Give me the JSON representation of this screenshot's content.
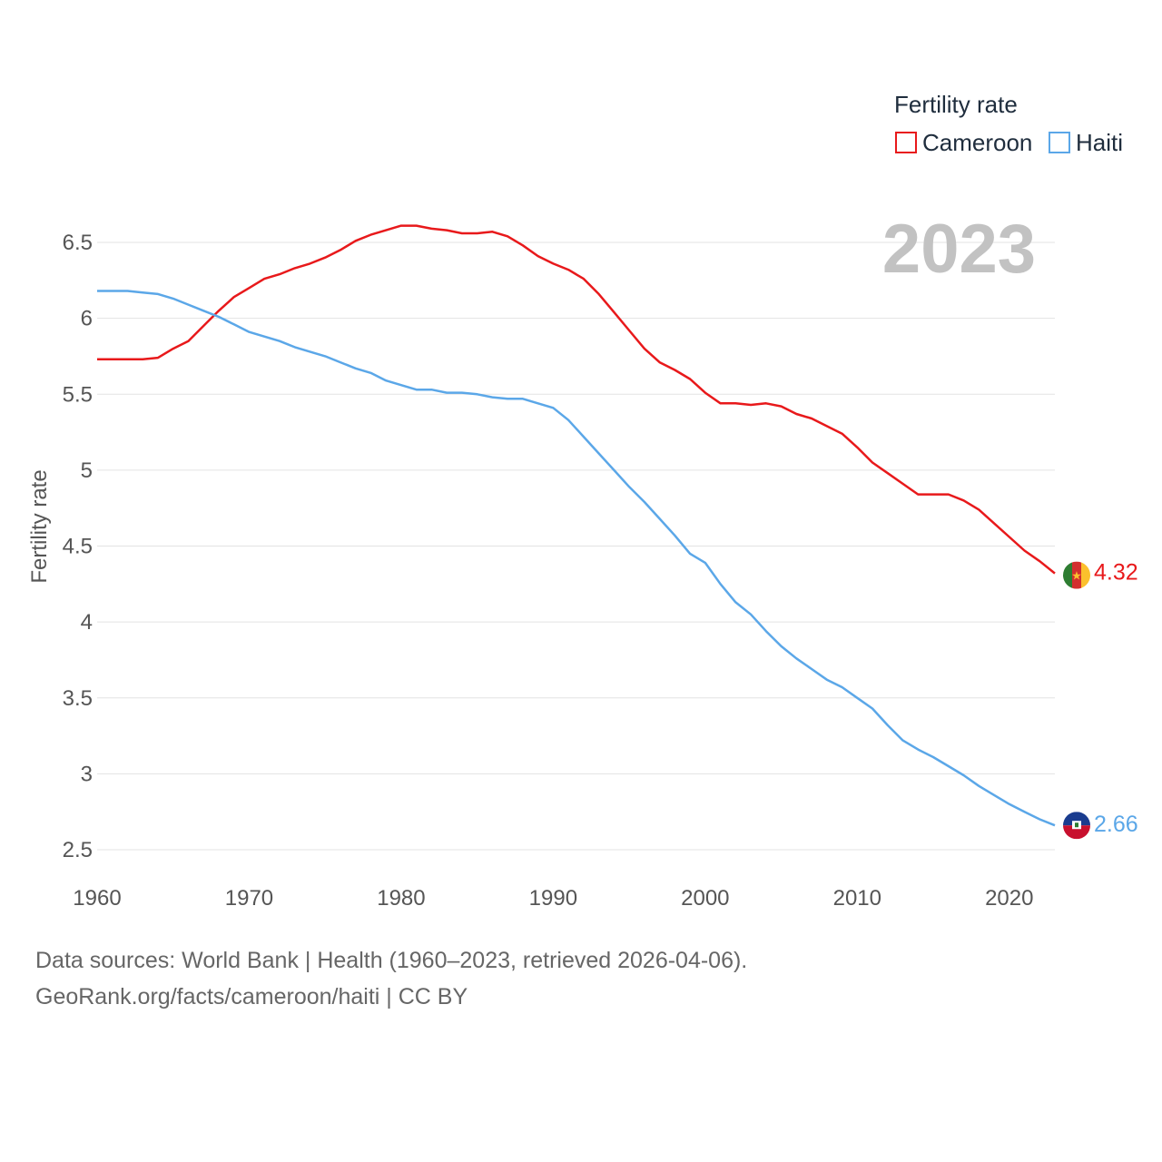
{
  "legend": {
    "title": "Fertility rate",
    "items": [
      "Cameroon",
      "Haiti"
    ]
  },
  "year_display": "2023",
  "footer": {
    "line1": "Data sources: World Bank | Health (1960–2023, retrieved 2026-04-06).",
    "line2": "GeoRank.org/facts/cameroon/haiti | CC BY"
  },
  "flags": {
    "cameroon": {
      "icon": "cameroon-flag-icon",
      "colors": [
        "#2e7d32",
        "#d32f2f",
        "#fbc02d"
      ]
    },
    "haiti": {
      "icon": "haiti-flag-icon",
      "colors": [
        "#1a3c8f",
        "#c8102e"
      ]
    }
  },
  "chart_data": {
    "type": "line",
    "title": "",
    "xlabel": "",
    "ylabel": "Fertility rate",
    "xlim": [
      1960,
      2023
    ],
    "ylim": [
      2.5,
      6.7
    ],
    "x_ticks": [
      1960,
      1970,
      1980,
      1990,
      2000,
      2010,
      2020
    ],
    "y_ticks": [
      2.5,
      3,
      3.5,
      4,
      4.5,
      5,
      5.5,
      6,
      6.5
    ],
    "y_tick_labels": [
      "2.5",
      "3",
      "3.5",
      "4",
      "4.5",
      "5",
      "5.5",
      "6",
      "6.5"
    ],
    "grid": true,
    "legend_position": "top-right",
    "x": [
      1960,
      1961,
      1962,
      1963,
      1964,
      1965,
      1966,
      1967,
      1968,
      1969,
      1970,
      1971,
      1972,
      1973,
      1974,
      1975,
      1976,
      1977,
      1978,
      1979,
      1980,
      1981,
      1982,
      1983,
      1984,
      1985,
      1986,
      1987,
      1988,
      1989,
      1990,
      1991,
      1992,
      1993,
      1994,
      1995,
      1996,
      1997,
      1998,
      1999,
      2000,
      2001,
      2002,
      2003,
      2004,
      2005,
      2006,
      2007,
      2008,
      2009,
      2010,
      2011,
      2012,
      2013,
      2014,
      2015,
      2016,
      2017,
      2018,
      2019,
      2020,
      2021,
      2022,
      2023
    ],
    "series": [
      {
        "name": "Cameroon",
        "color": "#e8191b",
        "end_label": "4.32",
        "values": [
          5.73,
          5.73,
          5.73,
          5.73,
          5.74,
          5.8,
          5.85,
          5.95,
          6.05,
          6.14,
          6.2,
          6.26,
          6.29,
          6.33,
          6.36,
          6.4,
          6.45,
          6.51,
          6.55,
          6.58,
          6.61,
          6.61,
          6.59,
          6.58,
          6.56,
          6.56,
          6.57,
          6.54,
          6.48,
          6.41,
          6.36,
          6.32,
          6.26,
          6.16,
          6.04,
          5.92,
          5.8,
          5.71,
          5.66,
          5.6,
          5.51,
          5.44,
          5.44,
          5.43,
          5.44,
          5.42,
          5.37,
          5.34,
          5.29,
          5.24,
          5.15,
          5.05,
          4.98,
          4.91,
          4.84,
          4.84,
          4.84,
          4.8,
          4.74,
          4.65,
          4.56,
          4.47,
          4.4,
          4.32
        ]
      },
      {
        "name": "Haiti",
        "color": "#5ba7e8",
        "end_label": "2.66",
        "values": [
          6.18,
          6.18,
          6.18,
          6.17,
          6.16,
          6.13,
          6.09,
          6.05,
          6.01,
          5.96,
          5.91,
          5.88,
          5.85,
          5.81,
          5.78,
          5.75,
          5.71,
          5.67,
          5.64,
          5.59,
          5.56,
          5.53,
          5.53,
          5.51,
          5.51,
          5.5,
          5.48,
          5.47,
          5.47,
          5.44,
          5.41,
          5.33,
          5.22,
          5.11,
          5.0,
          4.89,
          4.79,
          4.68,
          4.57,
          4.45,
          4.39,
          4.25,
          4.13,
          4.05,
          3.94,
          3.84,
          3.76,
          3.69,
          3.62,
          3.57,
          3.5,
          3.43,
          3.32,
          3.22,
          3.16,
          3.11,
          3.05,
          2.99,
          2.92,
          2.86,
          2.8,
          2.75,
          2.7,
          2.66
        ]
      }
    ]
  }
}
